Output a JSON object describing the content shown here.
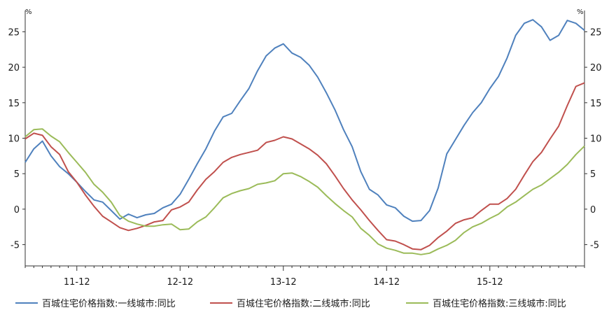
{
  "chart_data": {
    "type": "line",
    "title": "",
    "left_unit": "%",
    "right_unit": "%",
    "ylim": [
      -8,
      28
    ],
    "yticks": [
      25,
      20,
      15,
      10,
      5,
      0,
      -5
    ],
    "ytick_labels": [
      "25",
      "20",
      "15",
      "10",
      "5",
      "0",
      "-5"
    ],
    "xlim": [
      0,
      65
    ],
    "xticks": [
      6,
      18,
      30,
      42,
      54
    ],
    "xtick_labels": [
      "11-12",
      "12-12",
      "13-12",
      "14-12",
      "15-12"
    ],
    "grid": false,
    "legend_position": "bottom",
    "x": [
      0,
      1,
      2,
      3,
      4,
      5,
      6,
      7,
      8,
      9,
      10,
      11,
      12,
      13,
      14,
      15,
      16,
      17,
      18,
      19,
      20,
      21,
      22,
      23,
      24,
      25,
      26,
      27,
      28,
      29,
      30,
      31,
      32,
      33,
      34,
      35,
      36,
      37,
      38,
      39,
      40,
      41,
      42,
      43,
      44,
      45,
      46,
      47,
      48,
      49,
      50,
      51,
      52,
      53,
      54,
      55,
      56,
      57,
      58,
      59,
      60,
      61,
      62,
      63,
      64,
      65
    ],
    "series": [
      {
        "name": "百城住宅价格指数:一线城市:同比",
        "color": "#4f81bd",
        "values": [
          6.6,
          8.5,
          9.6,
          7.5,
          6.0,
          5.0,
          3.8,
          2.5,
          1.3,
          1.0,
          -0.2,
          -1.4,
          -0.7,
          -1.2,
          -0.8,
          -0.6,
          0.2,
          0.7,
          2.1,
          4.2,
          6.4,
          8.5,
          11.0,
          13.0,
          13.5,
          15.3,
          17.0,
          19.5,
          21.6,
          22.7,
          23.3,
          22.0,
          21.4,
          20.3,
          18.6,
          16.4,
          14.0,
          11.2,
          8.8,
          5.3,
          2.8,
          2.0,
          0.6,
          0.2,
          -1.0,
          -1.7,
          -1.6,
          -0.2,
          3.0,
          7.8,
          9.8,
          11.8,
          13.6,
          15.0,
          17.0,
          18.7,
          21.3,
          24.5,
          26.2,
          26.7,
          25.7,
          23.8,
          24.5,
          26.6,
          26.2,
          25.2
        ]
      },
      {
        "name": "百城住宅价格指数:二线城市:同比",
        "color": "#c0504d",
        "values": [
          9.9,
          10.7,
          10.4,
          8.8,
          7.7,
          5.3,
          3.8,
          2.0,
          0.4,
          -1.0,
          -1.8,
          -2.6,
          -3.0,
          -2.7,
          -2.3,
          -1.8,
          -1.6,
          -0.1,
          0.3,
          1.0,
          2.7,
          4.2,
          5.3,
          6.6,
          7.3,
          7.7,
          8.0,
          8.3,
          9.4,
          9.7,
          10.2,
          9.9,
          9.2,
          8.5,
          7.6,
          6.4,
          4.7,
          2.9,
          1.3,
          -0.1,
          -1.6,
          -3.0,
          -4.3,
          -4.5,
          -5.0,
          -5.6,
          -5.7,
          -5.1,
          -4.0,
          -3.1,
          -2.0,
          -1.5,
          -1.2,
          -0.2,
          0.7,
          0.7,
          1.5,
          2.8,
          4.8,
          6.7,
          8.0,
          9.9,
          11.7,
          14.6,
          17.3,
          17.8
        ]
      },
      {
        "name": "百城住宅价格指数:三线城市:同比",
        "color": "#9bbb59",
        "values": [
          10.2,
          11.2,
          11.3,
          10.3,
          9.5,
          8.0,
          6.6,
          5.2,
          3.5,
          2.4,
          1.0,
          -0.9,
          -1.7,
          -2.1,
          -2.4,
          -2.4,
          -2.2,
          -2.1,
          -2.9,
          -2.8,
          -1.8,
          -1.1,
          0.2,
          1.6,
          2.2,
          2.6,
          2.9,
          3.5,
          3.7,
          4.0,
          5.0,
          5.1,
          4.6,
          3.9,
          3.1,
          1.9,
          0.8,
          -0.2,
          -1.1,
          -2.7,
          -3.7,
          -4.9,
          -5.5,
          -5.8,
          -6.2,
          -6.2,
          -6.4,
          -6.2,
          -5.6,
          -5.1,
          -4.4,
          -3.3,
          -2.5,
          -2.0,
          -1.3,
          -0.7,
          0.3,
          1.0,
          1.9,
          2.8,
          3.4,
          4.3,
          5.2,
          6.3,
          7.7,
          8.9
        ]
      }
    ]
  }
}
